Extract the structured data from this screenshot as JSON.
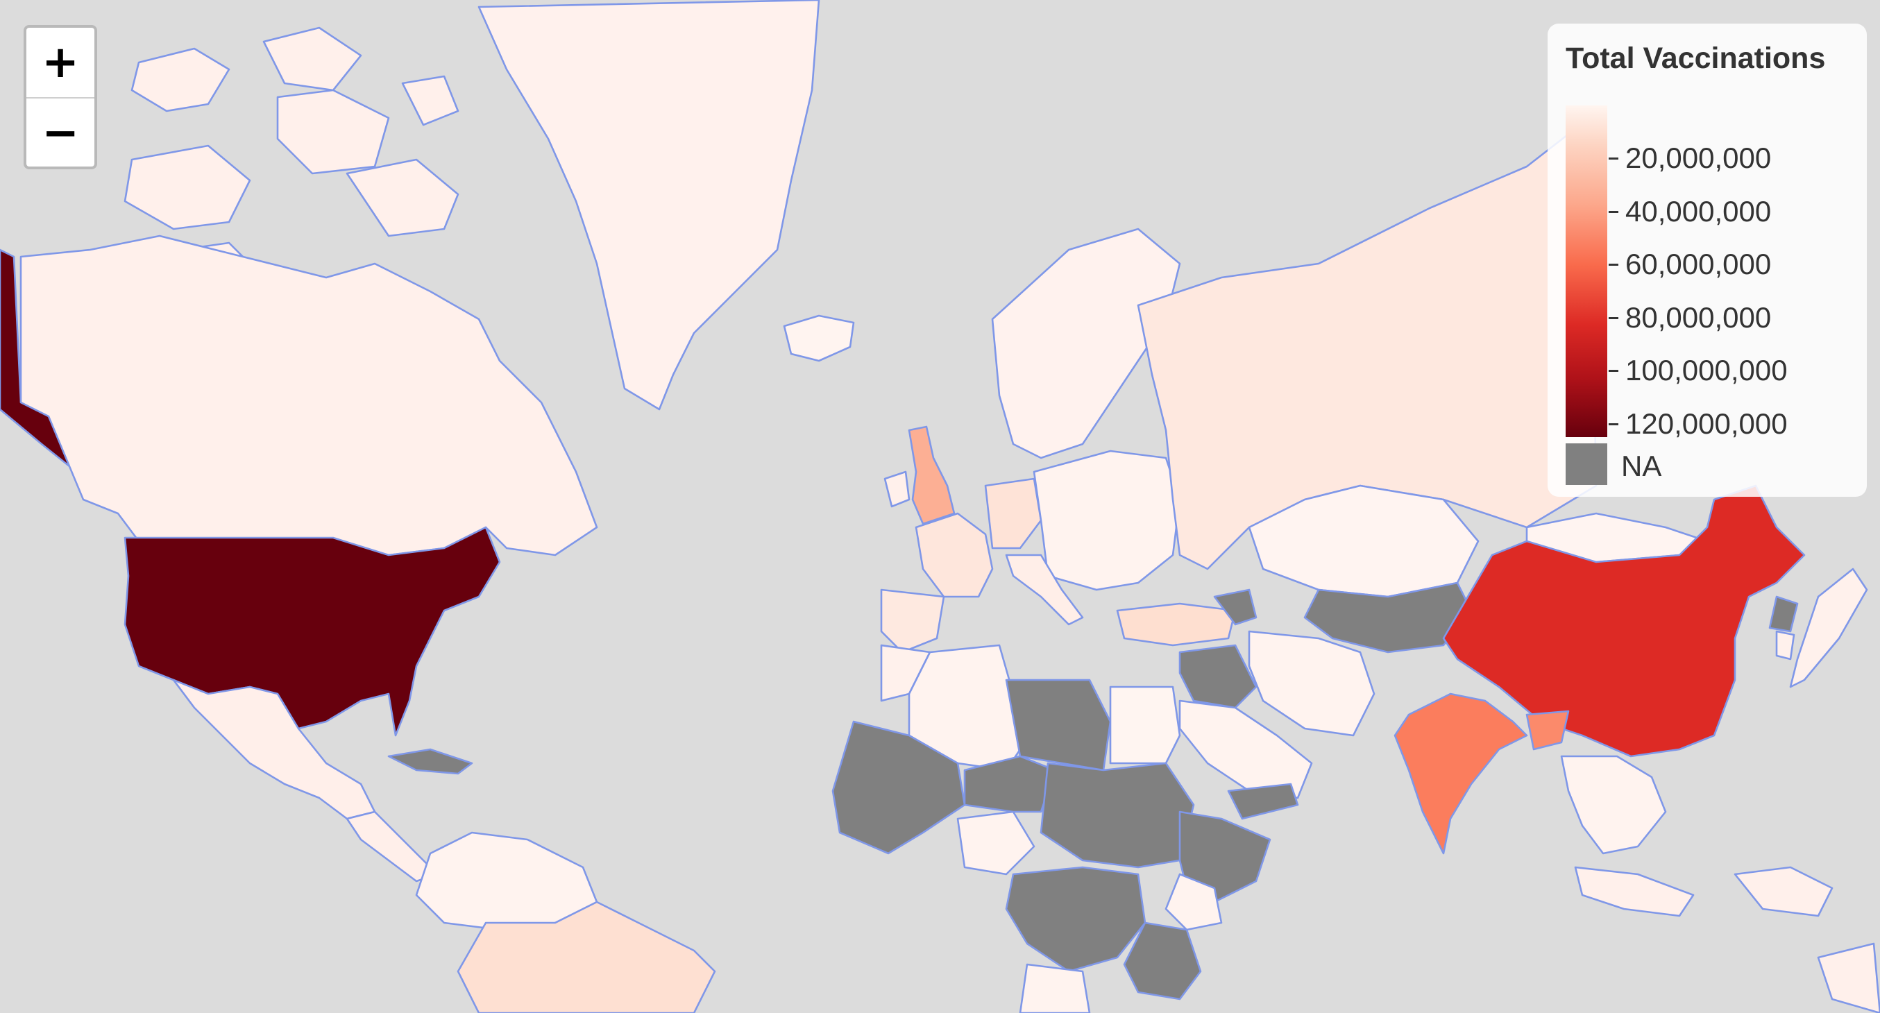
{
  "map": {
    "background_color": "#dcdcdc",
    "border_color": "#7f97e8",
    "countries": [
      {
        "name": "Greenland",
        "fill": "#fff1ed"
      },
      {
        "name": "Canada",
        "fill": "#fff0eb"
      },
      {
        "name": "Canadian Arctic Archipelago",
        "fill": "#fff0eb"
      },
      {
        "name": "United States",
        "fill": "#67000d"
      },
      {
        "name": "Alaska",
        "fill": "#67000d"
      },
      {
        "name": "Mexico",
        "fill": "#ffefea"
      },
      {
        "name": "Cuba",
        "fill": "#808080"
      },
      {
        "name": "Central America",
        "fill": "#ffefea"
      },
      {
        "name": "Brazil",
        "fill": "#fee0d2"
      },
      {
        "name": "South America North",
        "fill": "#fff3ef"
      },
      {
        "name": "Iceland",
        "fill": "#fff4f0"
      },
      {
        "name": "United Kingdom",
        "fill": "#fcaf94"
      },
      {
        "name": "Ireland",
        "fill": "#fff0eb"
      },
      {
        "name": "France",
        "fill": "#fee6dc"
      },
      {
        "name": "Spain",
        "fill": "#fee9e0"
      },
      {
        "name": "Germany",
        "fill": "#fee3d7"
      },
      {
        "name": "Scandinavia",
        "fill": "#fff2ee"
      },
      {
        "name": "Central Europe",
        "fill": "#fff3ef"
      },
      {
        "name": "Italy",
        "fill": "#ffeee8"
      },
      {
        "name": "Russia",
        "fill": "#fee8df"
      },
      {
        "name": "Turkey",
        "fill": "#fedfd0"
      },
      {
        "name": "Kazakhstan",
        "fill": "#fff4f1"
      },
      {
        "name": "Mongolia",
        "fill": "#fff4f1"
      },
      {
        "name": "Central Asia NA",
        "fill": "#808080"
      },
      {
        "name": "China",
        "fill": "#dd2a25"
      },
      {
        "name": "India",
        "fill": "#fb7d5d"
      },
      {
        "name": "Iran",
        "fill": "#fff3ef"
      },
      {
        "name": "Saudi Arabia",
        "fill": "#fff3ef"
      },
      {
        "name": "Syria Iraq NA",
        "fill": "#808080"
      },
      {
        "name": "Yemen NA",
        "fill": "#808080"
      },
      {
        "name": "Egypt",
        "fill": "#fff5f1"
      },
      {
        "name": "Algeria",
        "fill": "#fff3ef"
      },
      {
        "name": "Morocco",
        "fill": "#fff1ec"
      },
      {
        "name": "Libya",
        "fill": "#808080"
      },
      {
        "name": "West Africa NA",
        "fill": "#808080"
      },
      {
        "name": "Sahel NA",
        "fill": "#808080"
      },
      {
        "name": "Nigeria",
        "fill": "#fff3ef"
      },
      {
        "name": "Sudan Chad NA",
        "fill": "#808080"
      },
      {
        "name": "Ethiopia Somalia NA",
        "fill": "#808080"
      },
      {
        "name": "Kenya",
        "fill": "#fff3ef"
      },
      {
        "name": "Congo NA",
        "fill": "#808080"
      },
      {
        "name": "Tanzania NA",
        "fill": "#808080"
      },
      {
        "name": "Angola",
        "fill": "#fff3ef"
      },
      {
        "name": "Southeast Asia",
        "fill": "#fff3ef"
      },
      {
        "name": "Indonesia",
        "fill": "#fff0eb"
      },
      {
        "name": "Japan",
        "fill": "#fff1ec"
      },
      {
        "name": "Korea",
        "fill": "#fff1ec"
      },
      {
        "name": "North Korea NA",
        "fill": "#808080"
      },
      {
        "name": "Nepal Bangladesh",
        "fill": "#fb8a6b"
      }
    ]
  },
  "zoom": {
    "zoom_in_label": "+",
    "zoom_out_label": "−"
  },
  "legend": {
    "title": "Total Vaccinations",
    "scale_min": 0,
    "scale_max": 125000000,
    "tick_values": [
      20000000,
      40000000,
      60000000,
      80000000,
      100000000,
      120000000
    ],
    "tick_labels": [
      "20,000,000",
      "40,000,000",
      "60,000,000",
      "80,000,000",
      "100,000,000",
      "120,000,000"
    ],
    "na_label": "NA",
    "na_color": "#808080"
  }
}
